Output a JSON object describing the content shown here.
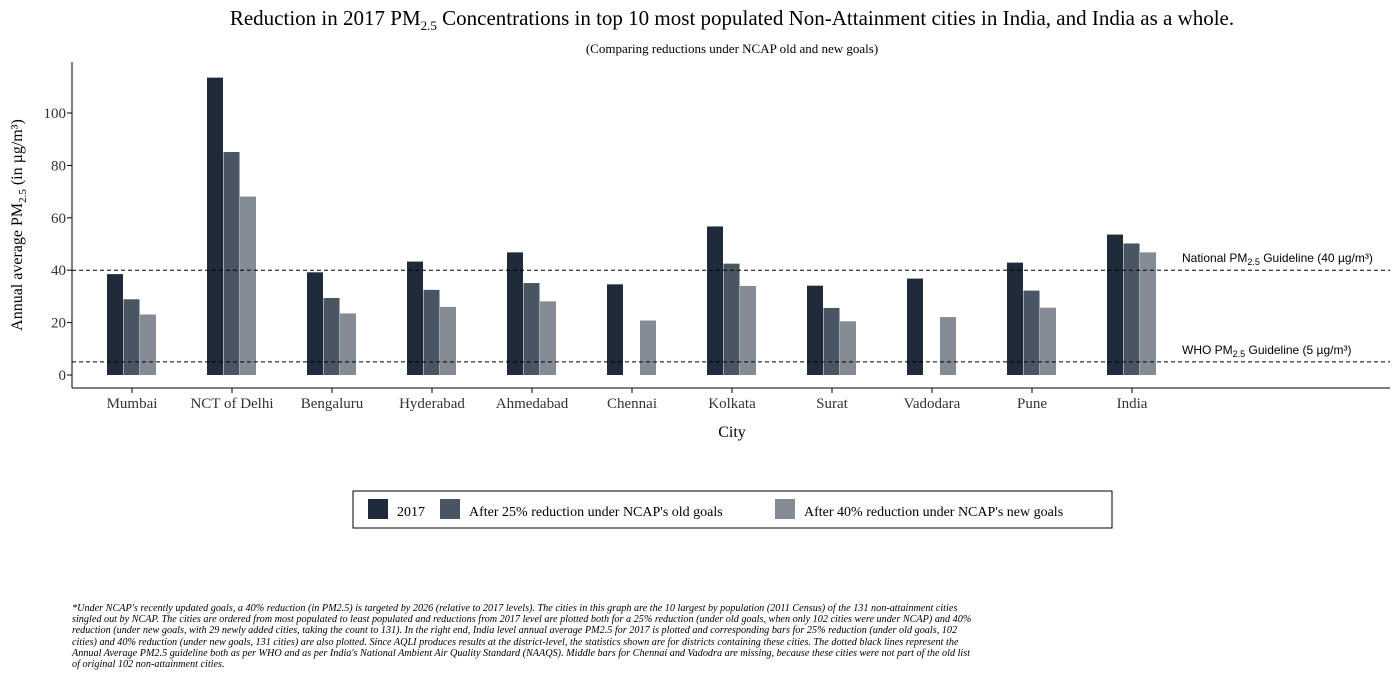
{
  "chart_data": {
    "type": "bar",
    "title": "Reduction in 2017 PM",
    "title_sub": "2.5",
    "title_rest": " Concentrations in top 10 most populated Non-Attainment cities in India, and India as a whole.",
    "subtitle": "(Comparing reductions under NCAP old and new goals)",
    "xlabel": "City",
    "ylabel_prefix": "Annual average PM",
    "ylabel_sub": "2.5",
    "ylabel_suffix": " (in µg/m³)",
    "categories": [
      "Mumbai",
      "NCT of Delhi",
      "Bengaluru",
      "Hyderabad",
      "Ahmedabad",
      "Chennai",
      "Kolkata",
      "Surat",
      "Vadodara",
      "Pune",
      "India"
    ],
    "series": [
      {
        "name": "2017",
        "color": "#1f2b3b",
        "values": [
          38.5,
          113.5,
          39.2,
          43.3,
          46.8,
          34.6,
          56.7,
          34.1,
          36.8,
          42.9,
          53.6
        ]
      },
      {
        "name": "After 25% reduction under NCAP's old goals",
        "color": "#4a5563",
        "values": [
          28.9,
          85.1,
          29.4,
          32.5,
          35.1,
          null,
          42.5,
          25.6,
          null,
          32.2,
          50.2
        ]
      },
      {
        "name": "After 40% reduction under NCAP's new goals",
        "color": "#848b95",
        "values": [
          23.1,
          68.1,
          23.5,
          26.0,
          28.1,
          20.8,
          34.0,
          20.5,
          22.1,
          25.7,
          46.8
        ]
      }
    ],
    "ylim": [
      0,
      120
    ],
    "yticks": [
      0,
      20,
      40,
      60,
      80,
      100
    ],
    "grid": false,
    "legend_position": "bottom",
    "reference_lines": [
      {
        "value": 40,
        "label_prefix": "National PM",
        "label_sub": "2.5",
        "label_suffix": " Guideline (40 µg/m³)"
      },
      {
        "value": 5,
        "label_prefix": "WHO PM",
        "label_sub": "2.5",
        "label_suffix": " Guideline (5 µg/m³)"
      }
    ]
  },
  "footnote": "*Under NCAP's recently updated goals, a 40% reduction (in PM2.5) is targeted by 2026 (relative to 2017 levels). The cities in this graph are the 10 largest by population (2011 Census) of the 131 non-attainment cities singled out by NCAP. The cities are ordered from most populated to least populated and reductions from 2017 level are plotted both for a 25% reduction (under old goals, when only 102 cities were under NCAP) and 40% reduction (under new goals, with 29 newly added cities, taking the count to 131). In the right end, India level annual average PM2.5 for 2017 is plotted and corresponding bars for 25% reduction (under old goals, 102 cities) and 40% reduction (under new goals, 131 cities) are also plotted. Since AQLI produces results at the district-level, the statistics shown are for districts containing these cities. The dotted black lines represent the Annual Average PM2.5 guideline both as per WHO and as per India's National Ambient Air Quality Standard (NAAQS). Middle bars for Chennai and Vadodra are missing, because these cities were not part of the old list of original 102 non-attainment cities."
}
